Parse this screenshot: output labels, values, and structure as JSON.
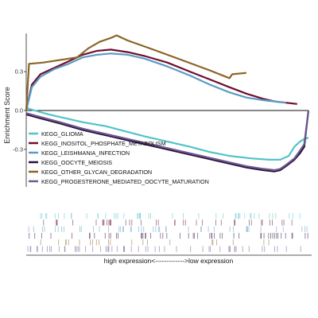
{
  "chart_data": {
    "type": "line",
    "title": "",
    "ylabel": "Enrichment Score",
    "xlabel": "high expression<------------->low expression",
    "xlim": [
      0,
      1
    ],
    "ylim": [
      -0.62,
      0.62
    ],
    "yticks": [
      {
        "value": 0.3,
        "label": "0.3"
      },
      {
        "value": 0.0,
        "label": "0.0"
      },
      {
        "value": -0.3,
        "label": "-0.3"
      }
    ],
    "zero_line": true,
    "grid": false,
    "legend_position": "inside-left",
    "legend": [
      {
        "name": "KEGG_GLIOMA",
        "color": "#52c3c8"
      },
      {
        "name": "KEGG_INOSITOL_PHOSPHATE_METABOLISM",
        "color": "#6e0f2e"
      },
      {
        "name": "KEGG_LEISHMANIA_INFECTION",
        "color": "#5b9bc8"
      },
      {
        "name": "KEGG_OOCYTE_MEIOSIS",
        "color": "#2a0f3d"
      },
      {
        "name": "KEGG_OTHER_GLYCAN_DEGRADATION",
        "color": "#8b6424"
      },
      {
        "name": "KEGG_PROGESTERONE_MEDIATED_OOCYTE_MATURATION",
        "color": "#6c5a8e"
      }
    ],
    "series": [
      {
        "name": "KEGG_GLIOMA",
        "color": "#52c3c8",
        "x": [
          0.0,
          0.03,
          0.08,
          0.14,
          0.2,
          0.28,
          0.35,
          0.42,
          0.5,
          0.58,
          0.65,
          0.72,
          0.8,
          0.86,
          0.9,
          0.93,
          0.95,
          0.97,
          0.985,
          1.0
        ],
        "y": [
          0.02,
          0.0,
          -0.03,
          -0.06,
          -0.09,
          -0.12,
          -0.16,
          -0.2,
          -0.24,
          -0.28,
          -0.32,
          -0.35,
          -0.37,
          -0.38,
          -0.38,
          -0.35,
          -0.28,
          -0.24,
          -0.22,
          -0.21
        ]
      },
      {
        "name": "KEGG_INOSITOL_PHOSPHATE_METABOLISM",
        "color": "#6e0f2e",
        "x": [
          0.0,
          0.02,
          0.05,
          0.1,
          0.15,
          0.2,
          0.25,
          0.3,
          0.36,
          0.42,
          0.5,
          0.58,
          0.65,
          0.72,
          0.78,
          0.84,
          0.88,
          0.92,
          0.96
        ],
        "y": [
          0.0,
          0.2,
          0.28,
          0.33,
          0.38,
          0.43,
          0.46,
          0.47,
          0.45,
          0.42,
          0.37,
          0.3,
          0.24,
          0.18,
          0.13,
          0.09,
          0.07,
          0.06,
          0.05
        ]
      },
      {
        "name": "KEGG_LEISHMANIA_INFECTION",
        "color": "#5b9bc8",
        "x": [
          0.0,
          0.02,
          0.05,
          0.1,
          0.15,
          0.2,
          0.25,
          0.3,
          0.36,
          0.42,
          0.5,
          0.58,
          0.65,
          0.72,
          0.78,
          0.84,
          0.88,
          0.92
        ],
        "y": [
          0.0,
          0.18,
          0.26,
          0.32,
          0.36,
          0.41,
          0.43,
          0.44,
          0.43,
          0.4,
          0.34,
          0.27,
          0.2,
          0.14,
          0.1,
          0.08,
          0.07,
          0.06
        ]
      },
      {
        "name": "KEGG_OOCYTE_MEIOSIS",
        "color": "#2a0f3d",
        "x": [
          0.0,
          0.05,
          0.12,
          0.2,
          0.3,
          0.4,
          0.5,
          0.6,
          0.7,
          0.78,
          0.84,
          0.88,
          0.9,
          0.92,
          0.95,
          0.97,
          0.985,
          1.0
        ],
        "y": [
          -0.03,
          -0.06,
          -0.1,
          -0.15,
          -0.2,
          -0.25,
          -0.3,
          -0.35,
          -0.4,
          -0.44,
          -0.46,
          -0.47,
          -0.46,
          -0.43,
          -0.38,
          -0.33,
          -0.28,
          0.0
        ]
      },
      {
        "name": "KEGG_OTHER_GLYCAN_DEGRADATION",
        "color": "#8b6424",
        "x": [
          0.0,
          0.01,
          0.06,
          0.12,
          0.18,
          0.22,
          0.26,
          0.3,
          0.32,
          0.36,
          0.45,
          0.55,
          0.65,
          0.72,
          0.73,
          0.78
        ],
        "y": [
          0.0,
          0.36,
          0.37,
          0.39,
          0.41,
          0.48,
          0.53,
          0.56,
          0.58,
          0.54,
          0.47,
          0.39,
          0.31,
          0.25,
          0.28,
          0.29
        ]
      },
      {
        "name": "KEGG_PROGESTERONE_MEDIATED_OOCYTE_MATURATION",
        "color": "#6c5a8e",
        "x": [
          0.0,
          0.05,
          0.12,
          0.2,
          0.3,
          0.4,
          0.5,
          0.6,
          0.7,
          0.78,
          0.84,
          0.88,
          0.9,
          0.92,
          0.95,
          0.97,
          0.985,
          1.0
        ],
        "y": [
          -0.02,
          -0.05,
          -0.09,
          -0.14,
          -0.19,
          -0.24,
          -0.29,
          -0.34,
          -0.39,
          -0.43,
          -0.45,
          -0.46,
          -0.45,
          -0.42,
          -0.37,
          -0.31,
          -0.26,
          0.0
        ]
      }
    ],
    "rug": [
      {
        "name": "KEGG_GLIOMA",
        "color": "#52c3c8",
        "seed": 11,
        "count": 45
      },
      {
        "name": "KEGG_INOSITOL_PHOSPHATE_METABOLISM",
        "color": "#6e0f2e",
        "seed": 23,
        "count": 40
      },
      {
        "name": "KEGG_LEISHMANIA_INFECTION",
        "color": "#5b9bc8",
        "seed": 37,
        "count": 45
      },
      {
        "name": "KEGG_OOCYTE_MEIOSIS",
        "color": "#2a0f3d",
        "seed": 41,
        "count": 50
      },
      {
        "name": "KEGG_OTHER_GLYCAN_DEGRADATION",
        "color": "#8b6424",
        "seed": 53,
        "count": 22
      },
      {
        "name": "KEGG_PROGESTERONE_MEDIATED_OOCYTE_MATURATION",
        "color": "#6c5a8e",
        "seed": 67,
        "count": 55
      }
    ]
  }
}
